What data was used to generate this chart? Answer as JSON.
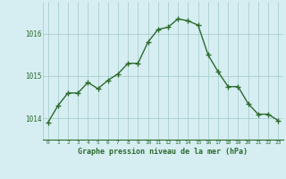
{
  "x": [
    0,
    1,
    2,
    3,
    4,
    5,
    6,
    7,
    8,
    9,
    10,
    11,
    12,
    13,
    14,
    15,
    16,
    17,
    18,
    19,
    20,
    21,
    22,
    23
  ],
  "y": [
    1013.9,
    1014.3,
    1014.6,
    1014.6,
    1014.85,
    1014.7,
    1014.9,
    1015.05,
    1015.3,
    1015.3,
    1015.8,
    1016.1,
    1016.15,
    1016.35,
    1016.3,
    1016.2,
    1015.5,
    1015.1,
    1014.75,
    1014.75,
    1014.35,
    1014.1,
    1014.1,
    1013.95
  ],
  "line_color": "#2d6a2d",
  "marker_color": "#2d6a2d",
  "bg_color": "#d6eef2",
  "grid_color": "#a0c8c8",
  "xlabel": "Graphe pression niveau de la mer (hPa)",
  "xlabel_color": "#2d6a2d",
  "tick_label_color": "#2d6a2d",
  "ylim": [
    1013.5,
    1016.75
  ],
  "yticks": [
    1014,
    1015,
    1016
  ],
  "xlim": [
    -0.5,
    23.5
  ],
  "xticks": [
    0,
    1,
    2,
    3,
    4,
    5,
    6,
    7,
    8,
    9,
    10,
    11,
    12,
    13,
    14,
    15,
    16,
    17,
    18,
    19,
    20,
    21,
    22,
    23
  ],
  "figsize": [
    3.2,
    2.0
  ],
  "dpi": 100
}
